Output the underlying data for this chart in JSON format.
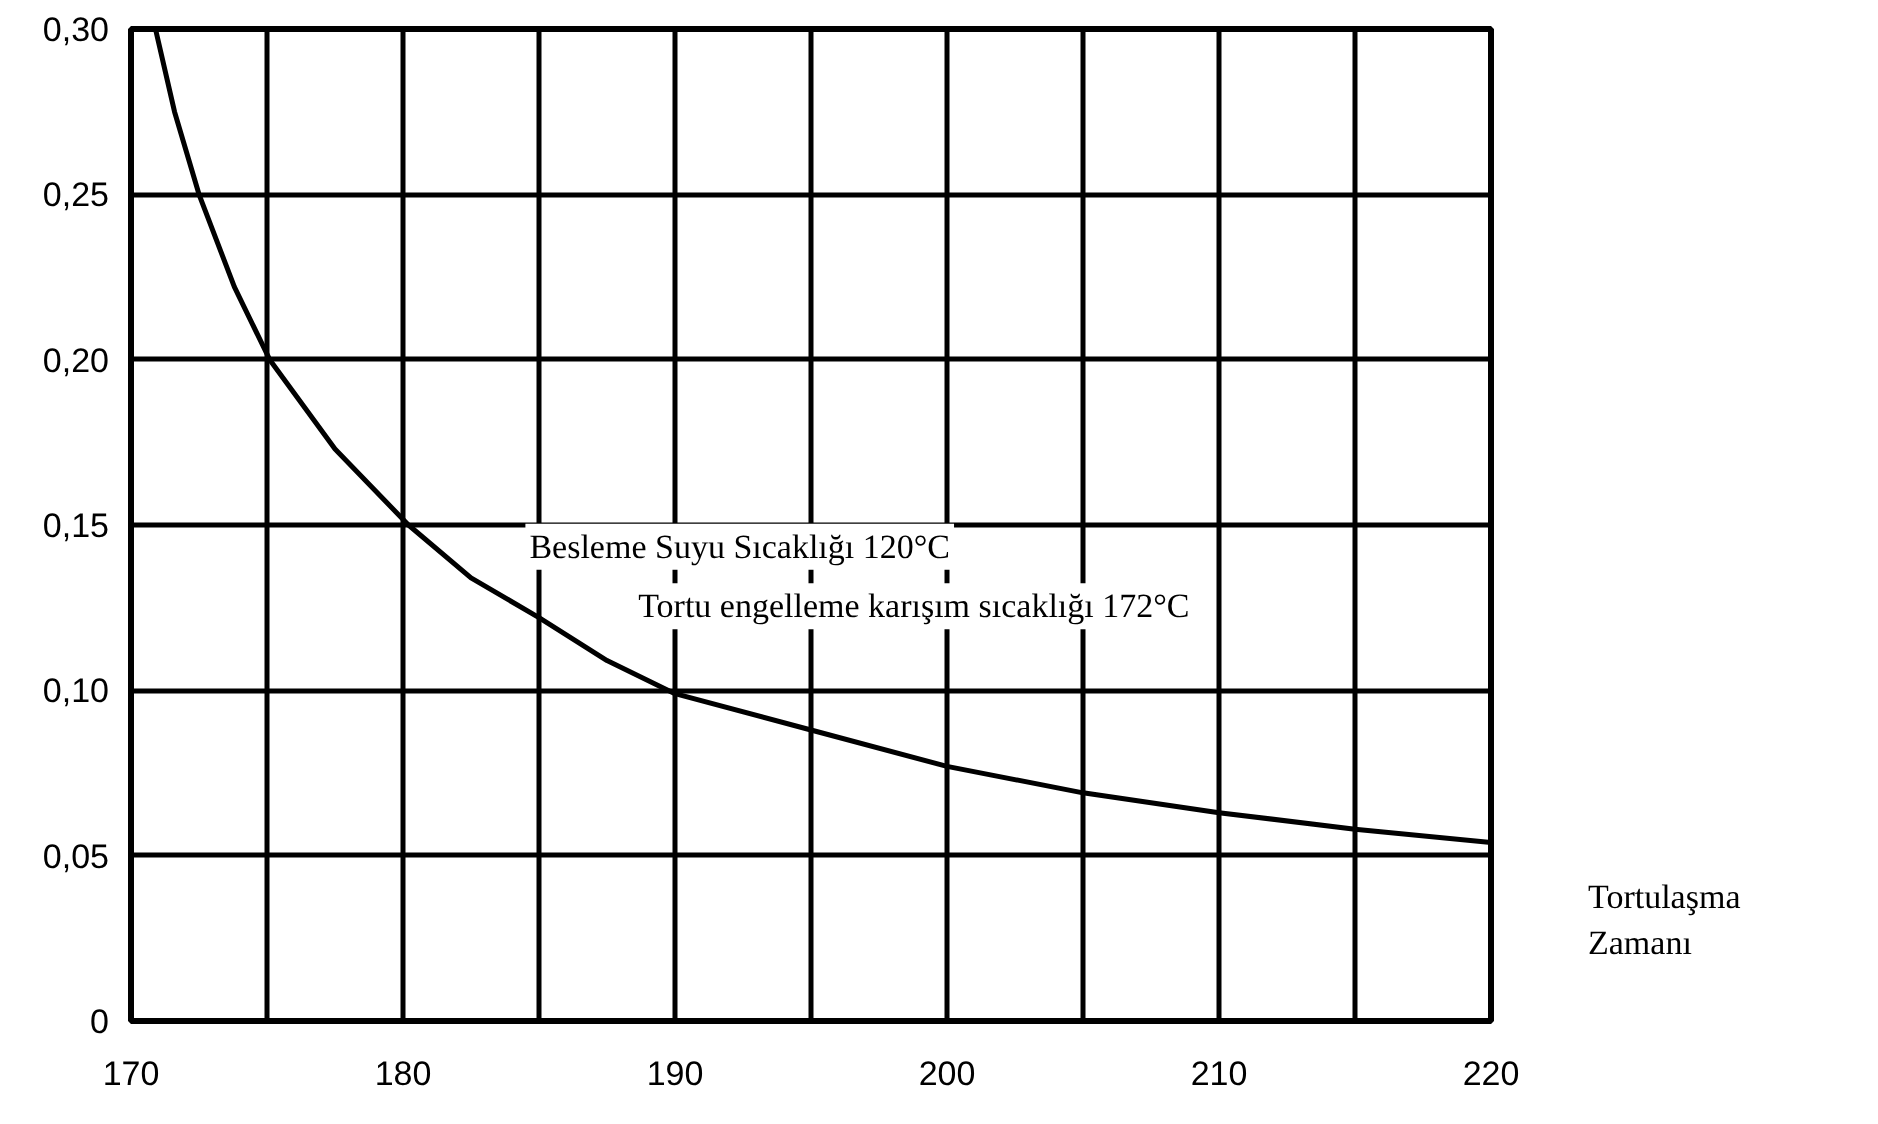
{
  "chart_data": {
    "type": "line",
    "xlabel": "Tortulaşma Zamanı",
    "annotations": [
      "Besleme Suyu Sıcaklığı 120°C",
      "Tortu engelleme karışım sıcaklığı 172°C"
    ],
    "series": [
      {
        "color": "#000000",
        "x": [
          170.9,
          171.6,
          172.5,
          173.8,
          175.1,
          177.5,
          180.2,
          182.5,
          185,
          187.5,
          190,
          195,
          200,
          205,
          210,
          215,
          220
        ],
        "values": [
          0.3,
          0.275,
          0.25,
          0.222,
          0.2,
          0.173,
          0.15,
          0.134,
          0.122,
          0.109,
          0.099,
          0.088,
          0.077,
          0.069,
          0.063,
          0.058,
          0.054
        ]
      }
    ],
    "xlim": [
      170,
      220
    ],
    "ylim": [
      0,
      0.3
    ],
    "xticks": [
      170,
      {
        "value": 175,
        "label": null
      },
      180,
      {
        "value": 185,
        "label": null
      },
      190,
      {
        "value": 195,
        "label": null
      },
      200,
      {
        "value": 205,
        "label": null
      },
      210,
      {
        "value": 215,
        "label": null
      },
      220
    ],
    "yticks": [
      {
        "value": 0,
        "label": "0"
      },
      {
        "value": 0.05,
        "label": "0,05"
      },
      {
        "value": 0.1,
        "label": "0,10"
      },
      {
        "value": 0.15,
        "label": "0,15"
      },
      {
        "value": 0.2,
        "label": "0,20"
      },
      {
        "value": 0.25,
        "label": "0,25"
      },
      {
        "value": 0.3,
        "label": "0,30"
      }
    ],
    "grid": true,
    "marker": "none",
    "line_style": "solid"
  }
}
